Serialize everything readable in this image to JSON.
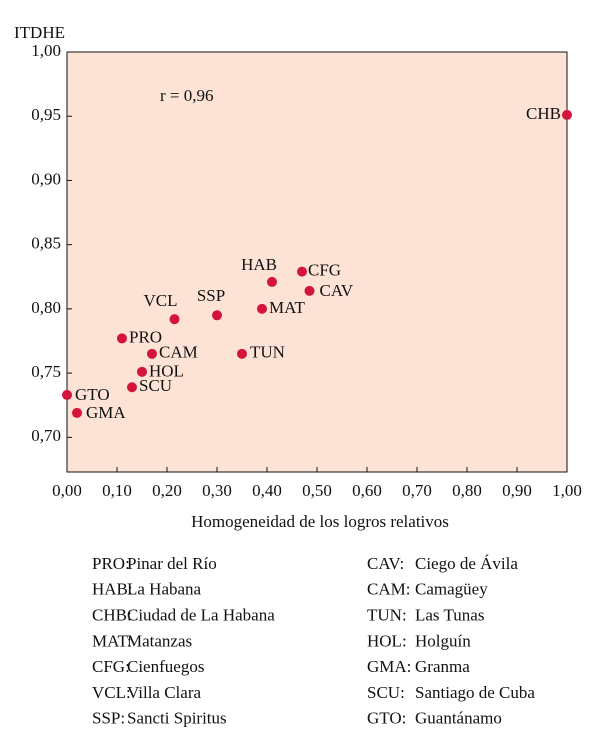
{
  "chart_data": {
    "type": "scatter",
    "y_label": "ITDHE",
    "x_label": "Homogeneidad de los logros relativos",
    "annotation": "r = 0,96",
    "labels": [
      "CHB",
      "HAB",
      "CFG",
      "CAV",
      "MAT",
      "SSP",
      "VCL",
      "PRO",
      "CAM",
      "TUN",
      "HOL",
      "SCU",
      "GTO",
      "GMA"
    ],
    "x": [
      1.0,
      0.41,
      0.47,
      0.485,
      0.39,
      0.3,
      0.215,
      0.11,
      0.17,
      0.35,
      0.15,
      0.13,
      0.0,
      0.02
    ],
    "values": [
      0.951,
      0.821,
      0.829,
      0.814,
      0.8,
      0.795,
      0.792,
      0.777,
      0.765,
      0.765,
      0.751,
      0.739,
      0.733,
      0.719
    ],
    "color": "#d5143c",
    "background": "#fde3d6",
    "xlim": [
      0,
      1
    ],
    "ylim": [
      0.673,
      1.0
    ],
    "xticks": [
      {
        "value": 0,
        "label": "0,00"
      },
      {
        "value": 0.1,
        "label": "0,10"
      },
      {
        "value": 0.2,
        "label": "0,20"
      },
      {
        "value": 0.3,
        "label": "0,30"
      },
      {
        "value": 0.4,
        "label": "0,40"
      },
      {
        "value": 0.5,
        "label": "0,50"
      },
      {
        "value": 0.6,
        "label": "0,60"
      },
      {
        "value": 0.7,
        "label": "0,70"
      },
      {
        "value": 0.8,
        "label": "0,80"
      },
      {
        "value": 0.9,
        "label": "0,90"
      },
      {
        "value": 1,
        "label": "1,00"
      }
    ],
    "yticks": [
      {
        "value": 0.7,
        "label": "0,70"
      },
      {
        "value": 0.75,
        "label": "0,75"
      },
      {
        "value": 0.8,
        "label": "0,80"
      },
      {
        "value": 0.85,
        "label": "0,85"
      },
      {
        "value": 0.9,
        "label": "0,90"
      },
      {
        "value": 0.95,
        "label": "0,95"
      },
      {
        "value": 1.0,
        "label": "1,00"
      }
    ],
    "legend": [
      {
        "code": "PRO:",
        "name": "Pinar del Río"
      },
      {
        "code": "HAB:",
        "name": "La Habana"
      },
      {
        "code": "CHB:",
        "name": "Ciudad de La Habana"
      },
      {
        "code": "MAT:",
        "name": "Matanzas"
      },
      {
        "code": "CFG:",
        "name": "Cienfuegos"
      },
      {
        "code": "VCL:",
        "name": "Villa Clara"
      },
      {
        "code": "SSP:",
        "name": "Sancti Spiritus"
      },
      {
        "code": "CAV:",
        "name": "Ciego de Ávila"
      },
      {
        "code": "CAM:",
        "name": "Camagüey"
      },
      {
        "code": "TUN:",
        "name": "Las Tunas"
      },
      {
        "code": "HOL:",
        "name": "Holguín"
      },
      {
        "code": "GMA:",
        "name": "Granma"
      },
      {
        "code": "SCU:",
        "name": "Santiago de Cuba"
      },
      {
        "code": "GTO:",
        "name": "Guantánamo"
      }
    ]
  }
}
